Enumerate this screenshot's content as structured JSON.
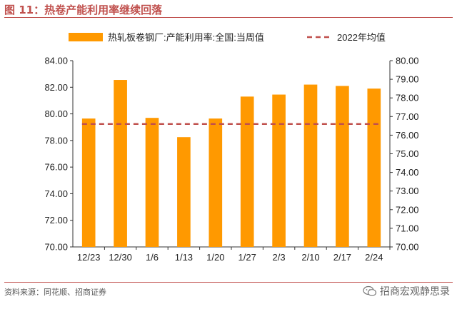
{
  "title": "图 11：热卷产能利用率继续回落",
  "source": "资料来源：同花顺、招商证券",
  "watermark": "招商宏观静思录",
  "colors": {
    "accent": "#c0504d",
    "bar": "#ff9900",
    "dash": "#c0504d"
  },
  "chart_data": {
    "type": "bar",
    "categories": [
      "12/23",
      "12/30",
      "1/6",
      "1/13",
      "1/20",
      "1/27",
      "2/3",
      "2/10",
      "2/17",
      "2/24"
    ],
    "series": [
      {
        "name": "热轧板卷钢厂:产能利用率:全国:当周值",
        "axis": "left",
        "type": "bar",
        "values": [
          79.65,
          82.55,
          79.7,
          78.25,
          79.65,
          81.3,
          81.45,
          82.2,
          82.1,
          81.9
        ]
      },
      {
        "name": "2022年均值",
        "axis": "right",
        "type": "line",
        "style": "dashed",
        "values": [
          76.6,
          76.6,
          76.6,
          76.6,
          76.6,
          76.6,
          76.6,
          76.6,
          76.6,
          76.6
        ]
      }
    ],
    "y_left": {
      "min": 70,
      "max": 84,
      "step": 2,
      "tick_labels": [
        "70.00",
        "72.00",
        "74.00",
        "76.00",
        "78.00",
        "80.00",
        "82.00",
        "84.00"
      ]
    },
    "y_right": {
      "min": 70,
      "max": 80,
      "step": 1,
      "tick_labels": [
        "70.00",
        "71.00",
        "72.00",
        "73.00",
        "74.00",
        "75.00",
        "76.00",
        "77.00",
        "78.00",
        "79.00",
        "80.00"
      ]
    },
    "legend_position": "top",
    "grid": false
  }
}
